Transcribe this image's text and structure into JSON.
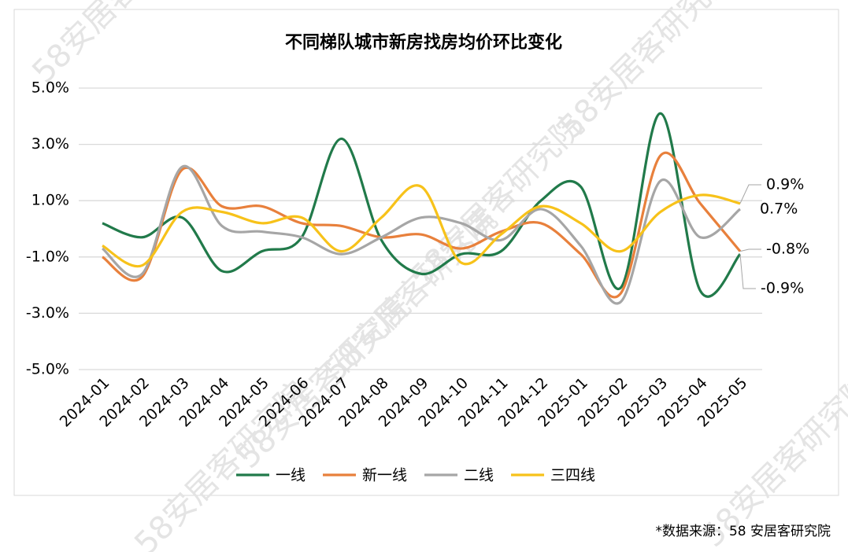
{
  "chart_data": {
    "type": "line",
    "title": "不同梯队城市新房找房均价环比变化",
    "categories": [
      "2024-01",
      "2024-02",
      "2024-03",
      "2024-04",
      "2024-05",
      "2024-06",
      "2024-07",
      "2024-08",
      "2024-09",
      "2024-10",
      "2024-11",
      "2024-12",
      "2025-01",
      "2025-02",
      "2025-03",
      "2025-04",
      "2025-05"
    ],
    "series": [
      {
        "name": "一线",
        "color": "#217a4a",
        "values": [
          0.2,
          -0.3,
          0.4,
          -1.5,
          -0.8,
          -0.3,
          3.2,
          -0.4,
          -1.6,
          -0.9,
          -0.8,
          1.0,
          1.5,
          -2.1,
          4.1,
          -2.2,
          -0.9
        ],
        "value_labels": [
          null,
          null,
          null,
          null,
          null,
          null,
          null,
          null,
          null,
          null,
          null,
          null,
          null,
          null,
          null,
          null,
          "-0.9%"
        ]
      },
      {
        "name": "新一线",
        "color": "#e8803c",
        "values": [
          -1.0,
          -1.7,
          2.1,
          0.8,
          0.8,
          0.2,
          0.1,
          -0.3,
          -0.2,
          -0.7,
          -0.1,
          0.2,
          -0.9,
          -2.3,
          2.6,
          0.9,
          -0.8
        ],
        "value_labels": [
          null,
          null,
          null,
          null,
          null,
          null,
          null,
          null,
          null,
          null,
          null,
          null,
          null,
          null,
          null,
          null,
          "-0.8%"
        ]
      },
      {
        "name": "二线",
        "color": "#a6a6a6",
        "values": [
          -0.7,
          -1.6,
          2.2,
          0.1,
          -0.1,
          -0.3,
          -0.9,
          -0.3,
          0.4,
          0.2,
          -0.4,
          0.7,
          -0.6,
          -2.6,
          1.7,
          -0.3,
          0.7
        ],
        "value_labels": [
          null,
          null,
          null,
          null,
          null,
          null,
          null,
          null,
          null,
          null,
          null,
          null,
          null,
          null,
          null,
          null,
          "0.7%"
        ]
      },
      {
        "name": "三四线",
        "color": "#f7c21a",
        "values": [
          -0.6,
          -1.3,
          0.6,
          0.6,
          0.2,
          0.4,
          -0.8,
          0.4,
          1.5,
          -1.2,
          -0.2,
          0.8,
          0.2,
          -0.8,
          0.6,
          1.2,
          0.9
        ],
        "value_labels": [
          null,
          null,
          null,
          null,
          null,
          null,
          null,
          null,
          null,
          null,
          null,
          null,
          null,
          null,
          null,
          null,
          "0.9%"
        ]
      }
    ],
    "ylim": [
      -5,
      5
    ],
    "yticks": [
      {
        "value": 5,
        "label": "5.0%"
      },
      {
        "value": 3,
        "label": "3.0%"
      },
      {
        "value": 1,
        "label": "1.0%"
      },
      {
        "value": -1,
        "label": "-1.0%"
      },
      {
        "value": -3,
        "label": "-3.0%"
      },
      {
        "value": -5,
        "label": "-5.0%"
      }
    ],
    "grid": true,
    "legend": "bottom",
    "source": "*数据来源：58 安居客研究院",
    "watermark": "58安居客研究院"
  }
}
